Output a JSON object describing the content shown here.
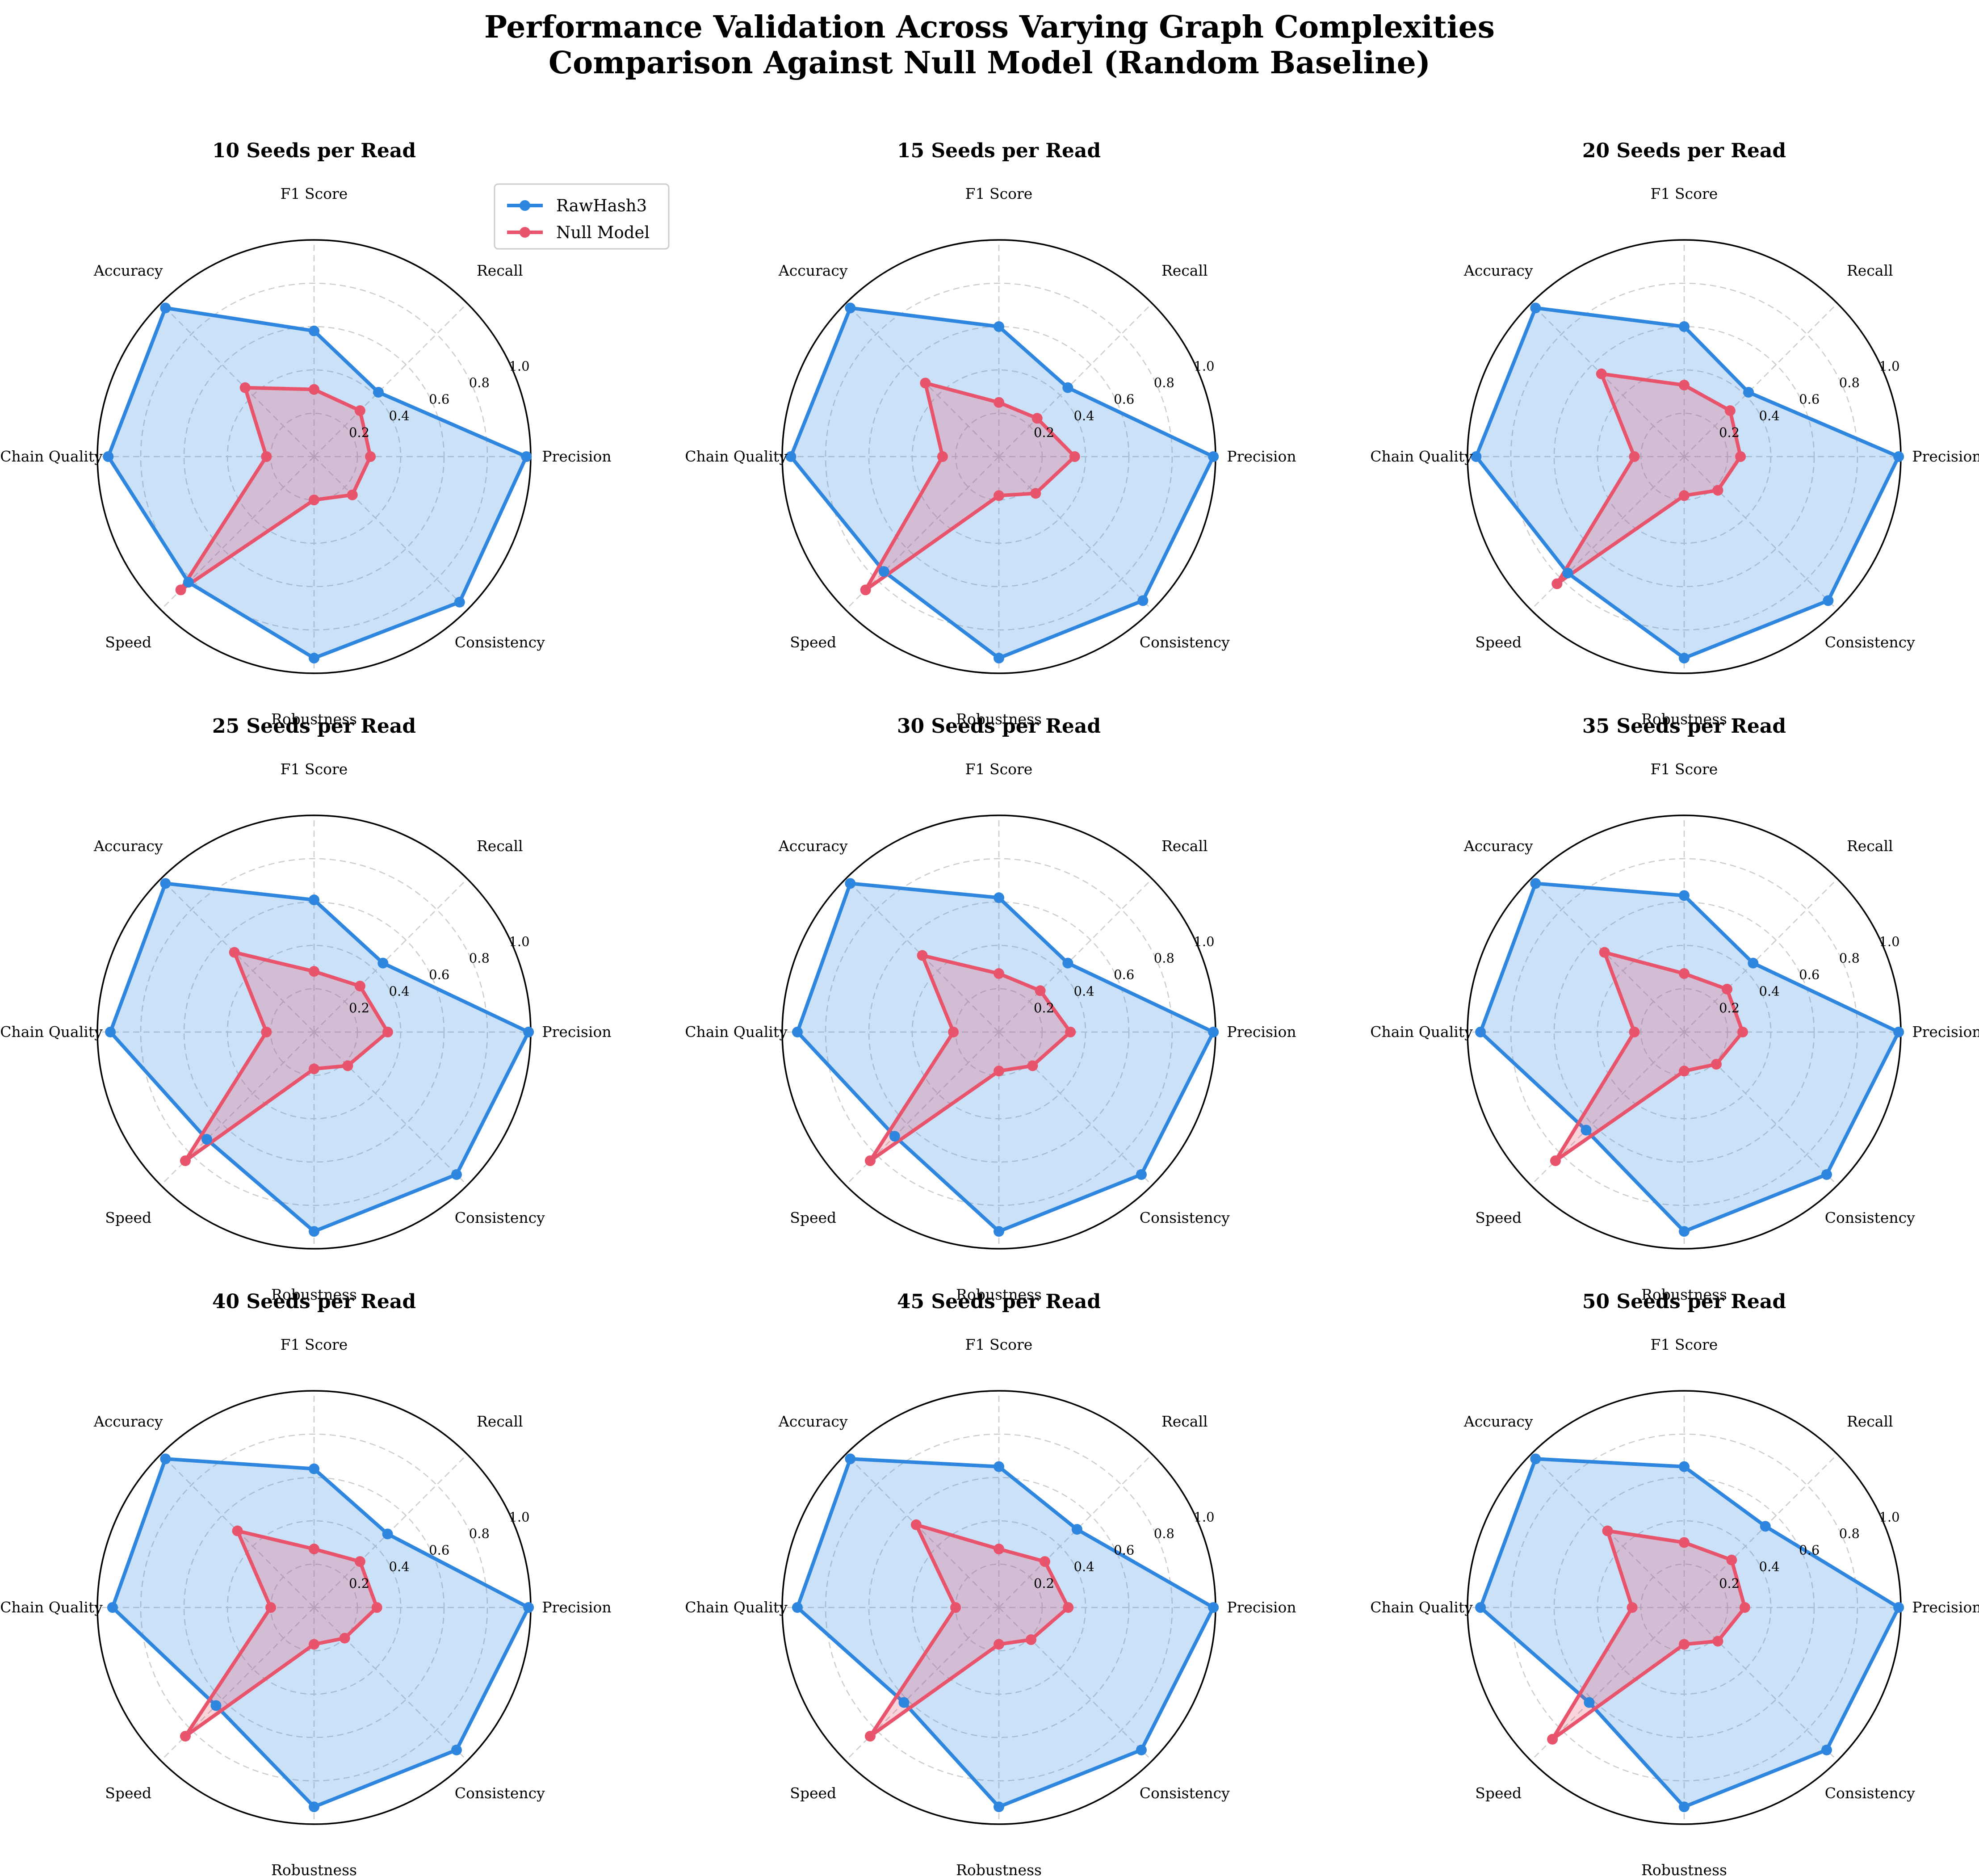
{
  "chart_data": {
    "type": "radar",
    "title_line1": "Performance Validation Across Varying Graph Complexities",
    "title_line2": "Comparison Against Null Model (Random Baseline)",
    "axes": [
      "Precision",
      "Recall",
      "F1 Score",
      "Accuracy",
      "Chain Quality",
      "Speed",
      "Robustness",
      "Consistency"
    ],
    "rticks": [
      0.2,
      0.4,
      0.6,
      0.8,
      1.0
    ],
    "rtick_labels": [
      "0.2",
      "0.4",
      "0.6",
      "0.8",
      "1.0"
    ],
    "rlim": [
      0,
      1
    ],
    "legend": [
      "RawHash3",
      "Null Model"
    ],
    "colors": {
      "RawHash3": "#2e86de",
      "Null Model": "#e8546b"
    },
    "panels": [
      {
        "title": "10 Seeds per Read",
        "series": [
          {
            "name": "RawHash3",
            "values": [
              0.98,
              0.42,
              0.58,
              0.97,
              0.95,
              0.82,
              0.93,
              0.95
            ]
          },
          {
            "name": "Null Model",
            "values": [
              0.26,
              0.3,
              0.31,
              0.45,
              0.22,
              0.87,
              0.2,
              0.25
            ]
          }
        ]
      },
      {
        "title": "15 Seeds per Read",
        "series": [
          {
            "name": "RawHash3",
            "values": [
              0.99,
              0.45,
              0.6,
              0.97,
              0.96,
              0.75,
              0.93,
              0.94
            ]
          },
          {
            "name": "Null Model",
            "values": [
              0.35,
              0.25,
              0.25,
              0.48,
              0.26,
              0.87,
              0.18,
              0.24
            ]
          }
        ]
      },
      {
        "title": "20 Seeds per Read",
        "series": [
          {
            "name": "RawHash3",
            "values": [
              0.99,
              0.42,
              0.6,
              0.97,
              0.96,
              0.76,
              0.93,
              0.94
            ]
          },
          {
            "name": "Null Model",
            "values": [
              0.26,
              0.3,
              0.33,
              0.54,
              0.23,
              0.83,
              0.18,
              0.22
            ]
          }
        ]
      },
      {
        "title": "25 Seeds per Read",
        "series": [
          {
            "name": "RawHash3",
            "values": [
              0.99,
              0.45,
              0.61,
              0.97,
              0.94,
              0.7,
              0.92,
              0.93
            ]
          },
          {
            "name": "Null Model",
            "values": [
              0.34,
              0.3,
              0.28,
              0.52,
              0.22,
              0.84,
              0.17,
              0.22
            ]
          }
        ]
      },
      {
        "title": "30 Seeds per Read",
        "series": [
          {
            "name": "RawHash3",
            "values": [
              0.99,
              0.45,
              0.62,
              0.97,
              0.93,
              0.68,
              0.92,
              0.93
            ]
          },
          {
            "name": "Null Model",
            "values": [
              0.33,
              0.27,
              0.27,
              0.5,
              0.21,
              0.84,
              0.18,
              0.22
            ]
          }
        ]
      },
      {
        "title": "35 Seeds per Read",
        "series": [
          {
            "name": "RawHash3",
            "values": [
              0.99,
              0.45,
              0.63,
              0.97,
              0.94,
              0.64,
              0.92,
              0.93
            ]
          },
          {
            "name": "Null Model",
            "values": [
              0.27,
              0.28,
              0.27,
              0.52,
              0.23,
              0.84,
              0.18,
              0.21
            ]
          }
        ]
      },
      {
        "title": "40 Seeds per Read",
        "series": [
          {
            "name": "RawHash3",
            "values": [
              0.99,
              0.48,
              0.64,
              0.97,
              0.93,
              0.64,
              0.92,
              0.93
            ]
          },
          {
            "name": "Null Model",
            "values": [
              0.29,
              0.3,
              0.27,
              0.5,
              0.2,
              0.84,
              0.17,
              0.2
            ]
          }
        ]
      },
      {
        "title": "45 Seeds per Read",
        "series": [
          {
            "name": "RawHash3",
            "values": [
              0.99,
              0.51,
              0.65,
              0.97,
              0.93,
              0.62,
              0.92,
              0.93
            ]
          },
          {
            "name": "Null Model",
            "values": [
              0.32,
              0.3,
              0.27,
              0.54,
              0.2,
              0.84,
              0.17,
              0.21
            ]
          }
        ]
      },
      {
        "title": "50 Seeds per Read",
        "series": [
          {
            "name": "RawHash3",
            "values": [
              0.99,
              0.53,
              0.65,
              0.97,
              0.94,
              0.62,
              0.92,
              0.93
            ]
          },
          {
            "name": "Null Model",
            "values": [
              0.28,
              0.31,
              0.3,
              0.5,
              0.24,
              0.86,
              0.17,
              0.22
            ]
          }
        ]
      }
    ]
  }
}
